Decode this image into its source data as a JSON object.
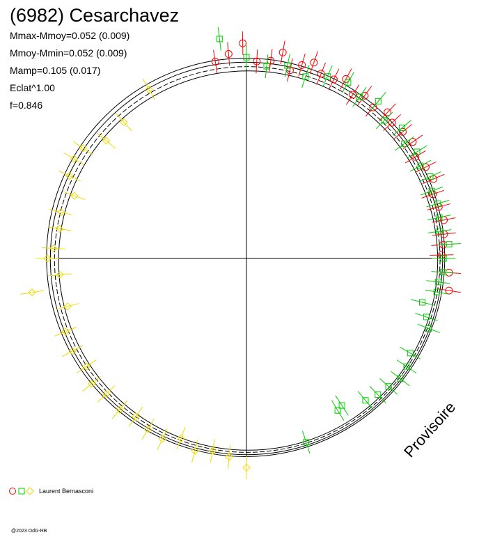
{
  "chart_data": {
    "type": "scatter",
    "title": "(6982) Cesarchavez",
    "stats": [
      "Mmax-Mmoy=0.052 (0.009)",
      "Mmoy-Mmin=0.052 (0.009)",
      "Mamp=0.105 (0.017)",
      "Eclat^1.00",
      "f=0.846"
    ],
    "watermark": "Provisoire",
    "legend_label": "Laurent Bernasconi",
    "copyright": "@2023 OdG-RB",
    "colors": {
      "red": "#ff0000",
      "green": "#00cc00",
      "yellow": "#ffff00",
      "axes": "#000000"
    },
    "polar": {
      "radius_ref": 1.0,
      "reference_circles": [
        1.0,
        0.985,
        0.968,
        0.952
      ],
      "series": [
        {
          "marker": "circle",
          "color": "red",
          "points": [
            [
              351,
              1.0
            ],
            [
              355,
              1.03
            ],
            [
              359,
              1.08
            ],
            [
              3,
              0.99
            ],
            [
              7,
              1.0
            ],
            [
              10,
              1.05
            ],
            [
              13,
              0.97
            ],
            [
              16,
              1.01
            ],
            [
              19,
              1.04
            ],
            [
              22,
              1.0
            ],
            [
              26,
              1.0
            ],
            [
              29,
              1.03
            ],
            [
              33,
              0.98
            ],
            [
              36,
              1.01
            ],
            [
              40,
              0.99
            ],
            [
              44,
              1.02
            ],
            [
              47,
              1.0
            ],
            [
              51,
              1.01
            ],
            [
              55,
              1.02
            ],
            [
              59,
              0.99
            ],
            [
              63,
              1.01
            ],
            [
              67,
              1.02
            ],
            [
              71,
              0.99
            ],
            [
              75,
              1.0
            ],
            [
              79,
              1.01
            ],
            [
              83,
              1.0
            ],
            [
              86,
              0.99
            ],
            [
              89,
              0.98
            ],
            [
              94,
              1.02
            ],
            [
              99,
              1.03
            ]
          ]
        },
        {
          "marker": "square",
          "color": "green",
          "points": [
            [
              353,
              1.11
            ],
            [
              0,
              1.01
            ],
            [
              6,
              0.97
            ],
            [
              12,
              0.99
            ],
            [
              18,
              0.96
            ],
            [
              24,
              1.0
            ],
            [
              30,
              1.02
            ],
            [
              35,
              0.99
            ],
            [
              40,
              1.03
            ],
            [
              45,
              0.98
            ],
            [
              50,
              1.02
            ],
            [
              54,
              0.98
            ],
            [
              58,
              1.01
            ],
            [
              62,
              0.99
            ],
            [
              66,
              1.01
            ],
            [
              70,
              0.99
            ],
            [
              74,
              1.0
            ],
            [
              78,
              0.99
            ],
            [
              82,
              0.98
            ],
            [
              86,
              1.02
            ],
            [
              90,
              0.99
            ],
            [
              94,
              0.99
            ],
            [
              97,
              0.97
            ],
            [
              100,
              0.97
            ],
            [
              104,
              0.91
            ],
            [
              108,
              0.95
            ],
            [
              111,
              0.98
            ],
            [
              120,
              0.95
            ],
            [
              124,
              0.97
            ],
            [
              128,
              0.98
            ],
            [
              132,
              0.96
            ],
            [
              136,
              0.95
            ],
            [
              140,
              0.93
            ],
            [
              147,
              0.88
            ],
            [
              149,
              0.89
            ],
            [
              162,
              0.97
            ]
          ]
        },
        {
          "marker": "diamond",
          "color": "yellow",
          "points": [
            [
              330,
              0.98
            ],
            [
              318,
              0.92
            ],
            [
              310,
              0.92
            ],
            [
              304,
              0.99
            ],
            [
              300,
              1.0
            ],
            [
              295,
              0.98
            ],
            [
              290,
              0.92
            ],
            [
              284,
              0.96
            ],
            [
              279,
              0.95
            ],
            [
              273,
              0.97
            ],
            [
              270,
              1.0
            ],
            [
              265,
              0.94
            ],
            [
              261,
              1.09
            ],
            [
              255,
              0.93
            ],
            [
              248,
              0.98
            ],
            [
              242,
              0.99
            ],
            [
              236,
              0.97
            ],
            [
              231,
              1.0
            ],
            [
              226,
              0.98
            ],
            [
              220,
              0.99
            ],
            [
              215,
              0.97
            ],
            [
              210,
              0.99
            ],
            [
              205,
              1.0
            ],
            [
              200,
              0.96
            ],
            [
              195,
              1.0
            ],
            [
              190,
              0.98
            ],
            [
              185,
              1.0
            ],
            [
              180,
              1.05
            ]
          ]
        }
      ]
    }
  }
}
